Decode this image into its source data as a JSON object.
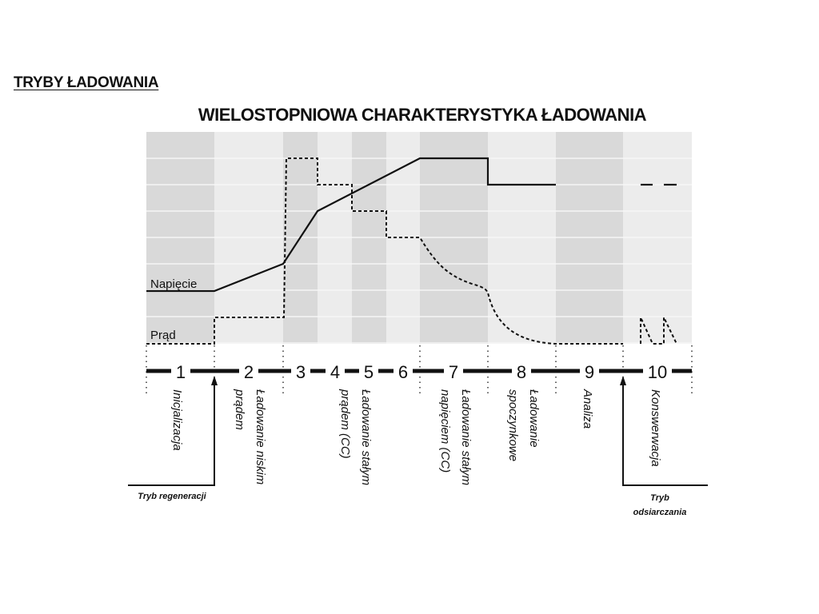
{
  "section_title": "TRYBY ŁADOWANIA",
  "title": "WIELOSTOPNIOWA CHARAKTERYSTYKA ŁADOWANIA",
  "series_labels": {
    "voltage": "Napięcie",
    "current": "Prąd"
  },
  "stages": [
    {
      "num": "1",
      "label": "Inicjalizacja"
    },
    {
      "num": "2",
      "label": "Ładowanie niskim prądem"
    },
    {
      "num": "3",
      "label": ""
    },
    {
      "num": "4",
      "label": ""
    },
    {
      "num": "5",
      "label": "Ładowanie stałym prądem (CC)"
    },
    {
      "num": "6",
      "label": ""
    },
    {
      "num": "7",
      "label": "Ładowanie stałym napięciem (CC)"
    },
    {
      "num": "8",
      "label": "Ładowanie spoczynkowe"
    },
    {
      "num": "9",
      "label": "Analiza"
    },
    {
      "num": "10",
      "label": "Konswerwacja"
    }
  ],
  "label_lines": {
    "s1": [
      "Inicjalizacja"
    ],
    "s2": [
      "Ładowanie niskim",
      "prądem"
    ],
    "s45": [
      "Ładowanie stałym",
      "prądem (CC)"
    ],
    "s7": [
      "Ładowanie stałym",
      "napięciem (CC)"
    ],
    "s8": [
      "Ładowanie",
      "spoczynkowe"
    ],
    "s9": [
      "Analiza"
    ],
    "s10": [
      "Konswerwacja"
    ]
  },
  "modes": {
    "regeneration": "Tryb regeneracji",
    "desulfation_1": "Tryb",
    "desulfation_2": "odsiarczania"
  },
  "colors": {
    "dark_band": "#d9d9d9",
    "light_band": "#ececec",
    "line": "#111111"
  }
}
